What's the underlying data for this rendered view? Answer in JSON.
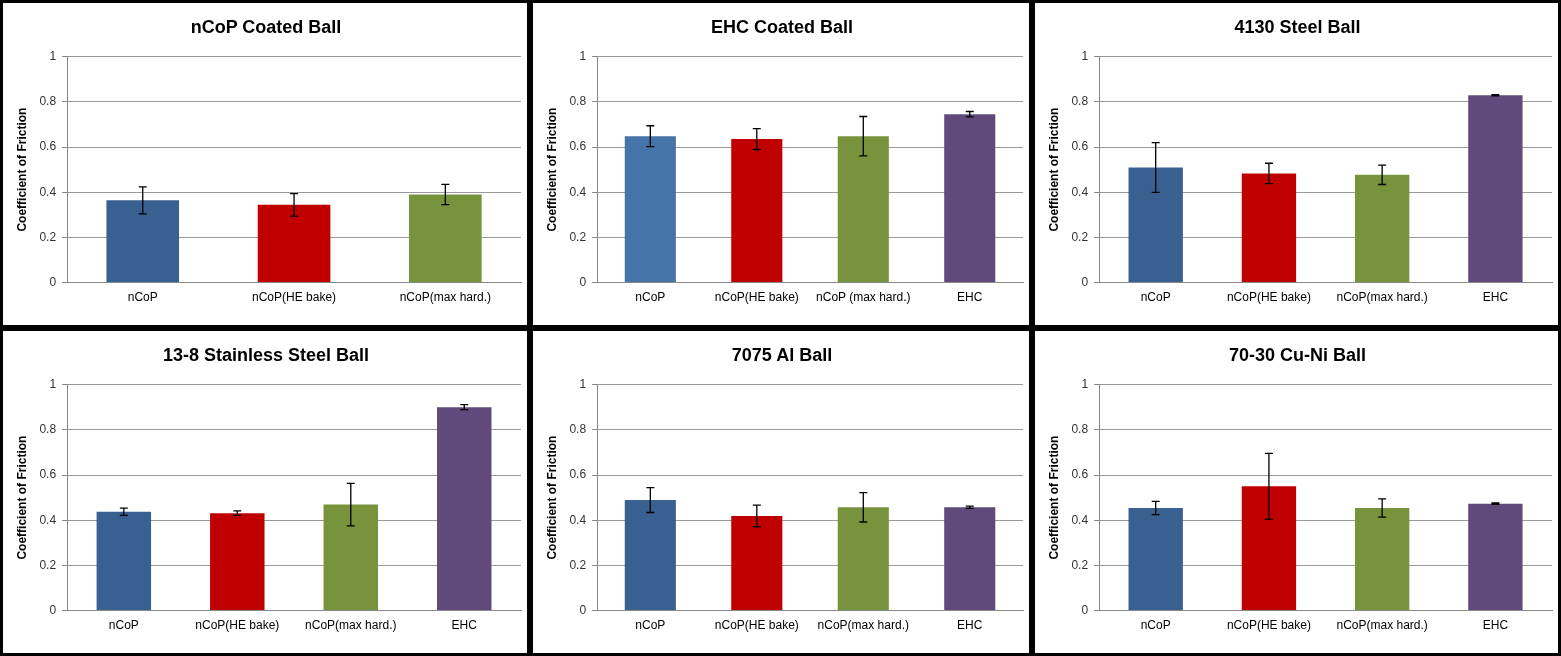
{
  "chart_data": [
    {
      "type": "bar",
      "title": "nCoP Coated Ball",
      "ylabel": "Coefficient of Friction",
      "categories": [
        "nCoP",
        "nCoP(HE bake)",
        "nCoP(max hard.)"
      ],
      "values": [
        0.364,
        0.344,
        0.39
      ],
      "errors": [
        0.06,
        0.05,
        0.045
      ],
      "colors": [
        "#386192",
        "#c00000",
        "#77933c"
      ],
      "ylim": [
        0,
        1
      ],
      "yticks": [
        0,
        0.2,
        0.4,
        0.6,
        0.8,
        1
      ],
      "grid": "y",
      "legend": false
    },
    {
      "type": "bar",
      "title": "EHC Coated Ball",
      "ylabel": "Coefficient of Friction",
      "categories": [
        "nCoP",
        "nCoP(HE bake)",
        "nCoP (max hard.)",
        "EHC"
      ],
      "values": [
        0.648,
        0.635,
        0.648,
        0.745
      ],
      "errors": [
        0.046,
        0.046,
        0.087,
        0.012
      ],
      "colors": [
        "#4674a8",
        "#c00000",
        "#77933c",
        "#604a7b"
      ],
      "ylim": [
        0,
        1
      ],
      "yticks": [
        0,
        0.2,
        0.4,
        0.6,
        0.8,
        1
      ],
      "grid": "y",
      "legend": false
    },
    {
      "type": "bar",
      "title": "4130 Steel Ball",
      "ylabel": "Coefficient of Friction",
      "categories": [
        "nCoP",
        "nCoP(HE bake)",
        "nCoP(max hard.)",
        "EHC"
      ],
      "values": [
        0.509,
        0.483,
        0.477,
        0.829
      ],
      "errors": [
        0.11,
        0.045,
        0.043,
        0.003
      ],
      "colors": [
        "#386192",
        "#c00000",
        "#77933c",
        "#604a7b"
      ],
      "ylim": [
        0,
        1
      ],
      "yticks": [
        0,
        0.2,
        0.4,
        0.6,
        0.8,
        1
      ],
      "grid": "y",
      "legend": false
    },
    {
      "type": "bar",
      "title": "13-8 Stainless Steel Ball",
      "ylabel": "Coefficient of Friction",
      "categories": [
        "nCoP",
        "nCoP(HE bake)",
        "nCoP(max hard.)",
        "EHC"
      ],
      "values": [
        0.437,
        0.431,
        0.469,
        0.9
      ],
      "errors": [
        0.016,
        0.01,
        0.094,
        0.011
      ],
      "colors": [
        "#386192",
        "#c00000",
        "#77933c",
        "#604a7b"
      ],
      "ylim": [
        0,
        1
      ],
      "yticks": [
        0,
        0.2,
        0.4,
        0.6,
        0.8,
        1
      ],
      "grid": "y",
      "legend": false
    },
    {
      "type": "bar",
      "title": "7075 Al Ball",
      "ylabel": "Coefficient of Friction",
      "categories": [
        "nCoP",
        "nCoP(HE bake)",
        "nCoP(max hard.)",
        "EHC"
      ],
      "values": [
        0.489,
        0.419,
        0.457,
        0.457
      ],
      "errors": [
        0.055,
        0.048,
        0.065,
        0.005
      ],
      "colors": [
        "#386192",
        "#c00000",
        "#77933c",
        "#604a7b"
      ],
      "ylim": [
        0,
        1
      ],
      "yticks": [
        0,
        0.2,
        0.4,
        0.6,
        0.8,
        1
      ],
      "grid": "y",
      "legend": false
    },
    {
      "type": "bar",
      "title": "70-30 Cu-Ni Ball",
      "ylabel": "Coefficient of Friction",
      "categories": [
        "nCoP",
        "nCoP(HE bake)",
        "nCoP(max hard.)",
        "EHC"
      ],
      "values": [
        0.454,
        0.55,
        0.454,
        0.473
      ],
      "errors": [
        0.029,
        0.146,
        0.04,
        0.003
      ],
      "colors": [
        "#386192",
        "#c00000",
        "#77933c",
        "#604a7b"
      ],
      "ylim": [
        0,
        1
      ],
      "yticks": [
        0,
        0.2,
        0.4,
        0.6,
        0.8,
        1
      ],
      "grid": "y",
      "legend": false
    }
  ]
}
